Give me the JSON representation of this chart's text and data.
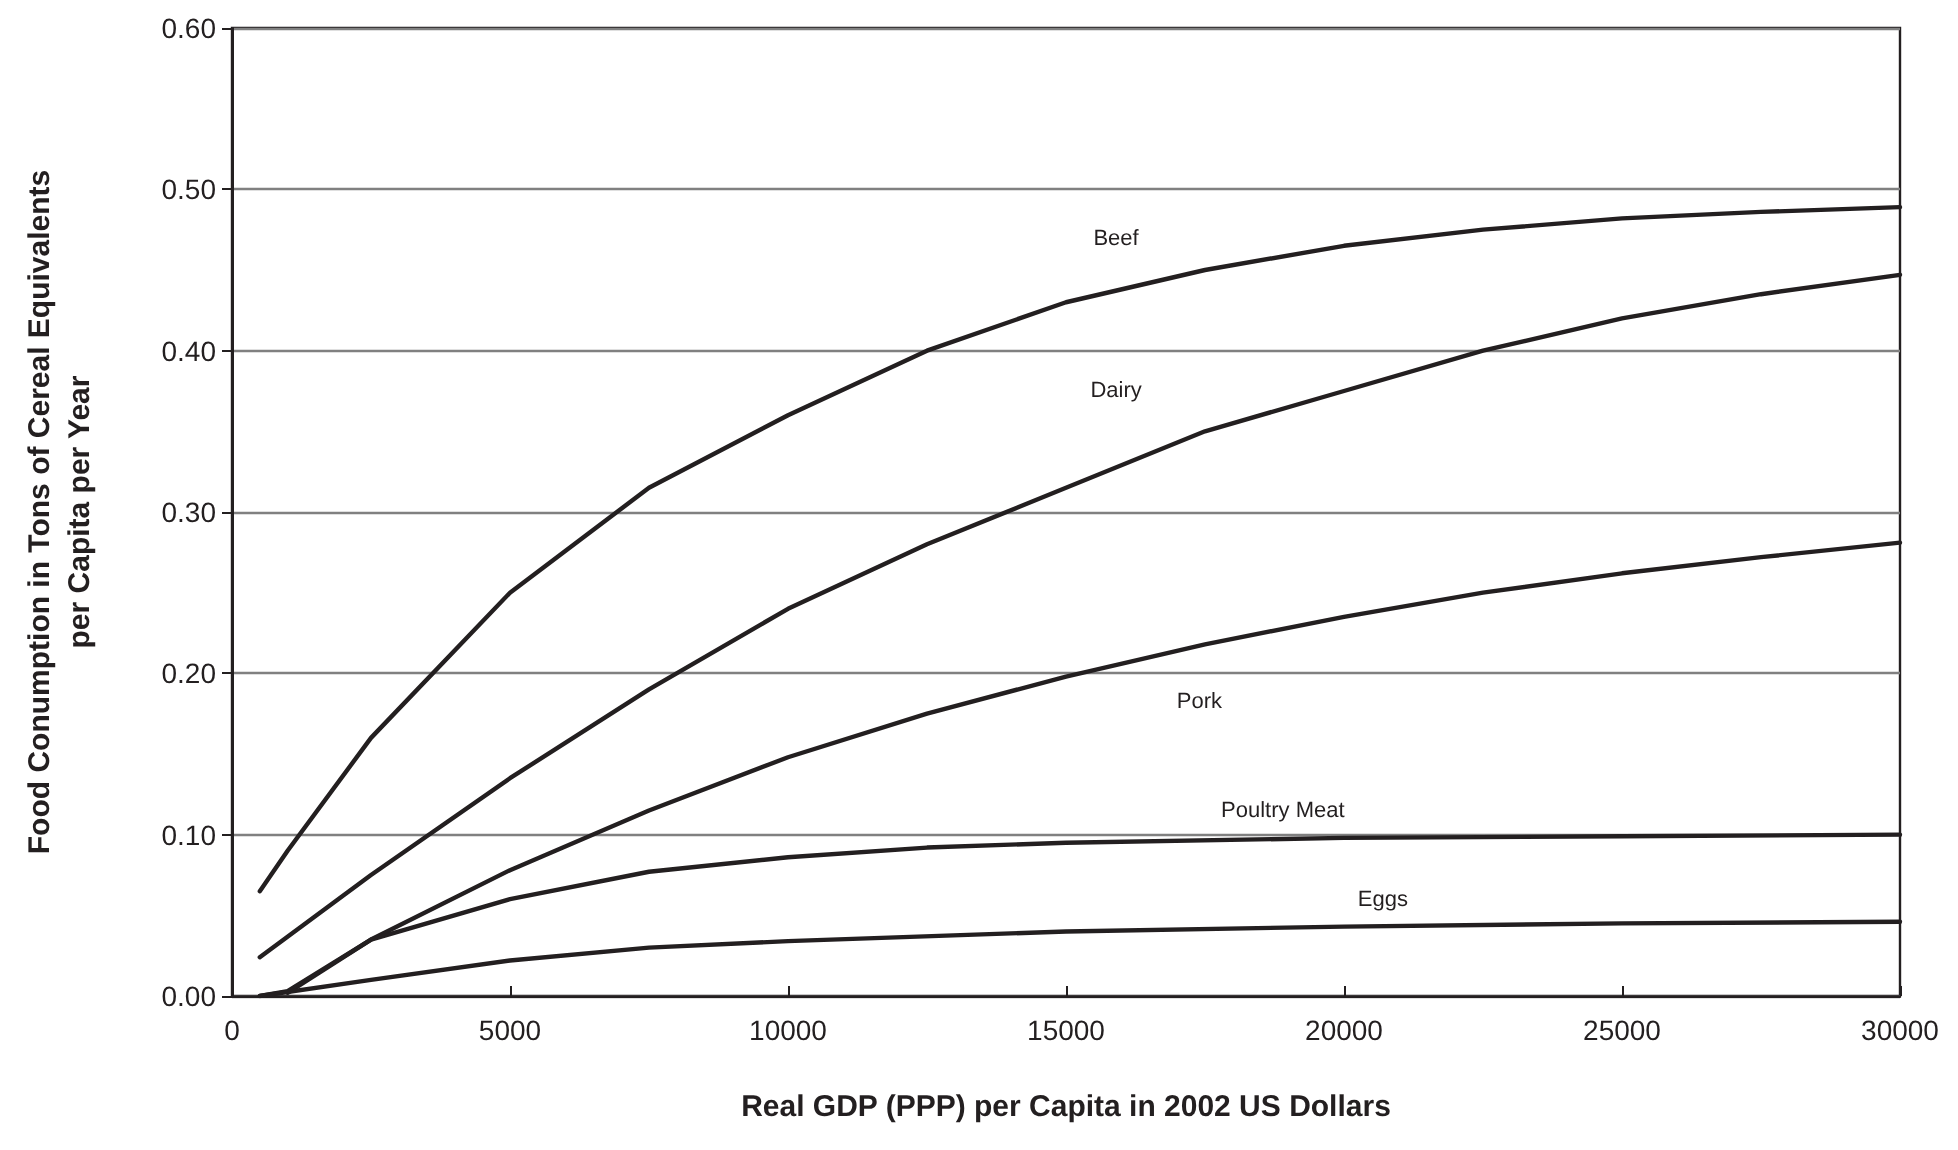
{
  "chart_data": {
    "type": "line",
    "xlabel": "Real GDP (PPP) per Capita in 2002 US Dollars",
    "ylabel": "Food Conumption in Tons of Cereal Equivalents\nper Capita per Year",
    "xlim": [
      0,
      30000
    ],
    "xticks": [
      0,
      5000,
      10000,
      15000,
      20000,
      25000,
      30000
    ],
    "ylim": [
      0,
      0.6
    ],
    "yticks": [
      {
        "value": 0,
        "label": "0.00"
      },
      {
        "value": 0.1,
        "label": "0.10"
      },
      {
        "value": 0.2,
        "label": "0.20"
      },
      {
        "value": 0.3,
        "label": "0.30"
      },
      {
        "value": 0.4,
        "label": "0.40"
      },
      {
        "value": 0.5,
        "label": "0.50"
      },
      {
        "value": 0.6,
        "label": "0.60"
      }
    ],
    "grid": "y",
    "legend": false,
    "marker": "none",
    "line_style": "solid",
    "series": [
      {
        "name": "Beef",
        "color": "#231f20",
        "x": [
          500,
          1000,
          2500,
          5000,
          7500,
          10000,
          12500,
          15000,
          17500,
          20000,
          22500,
          25000,
          27500,
          30000
        ],
        "values": [
          0.065,
          0.09,
          0.16,
          0.25,
          0.315,
          0.36,
          0.4,
          0.43,
          0.45,
          0.465,
          0.475,
          0.482,
          0.486,
          0.489
        ]
      },
      {
        "name": "Dairy",
        "color": "#231f20",
        "x": [
          500,
          2500,
          5000,
          7500,
          10000,
          12500,
          15000,
          17500,
          20000,
          22500,
          25000,
          27500,
          30000
        ],
        "values": [
          0.024,
          0.075,
          0.135,
          0.19,
          0.24,
          0.28,
          0.315,
          0.35,
          0.375,
          0.4,
          0.42,
          0.435,
          0.447
        ]
      },
      {
        "name": "Pork",
        "color": "#231f20",
        "x": [
          1000,
          2500,
          5000,
          7500,
          10000,
          12500,
          15000,
          17500,
          20000,
          22500,
          25000,
          27500,
          30000
        ],
        "values": [
          0.002,
          0.035,
          0.078,
          0.115,
          0.148,
          0.175,
          0.198,
          0.218,
          0.235,
          0.25,
          0.262,
          0.272,
          0.281
        ]
      },
      {
        "name": "Poultry Meat",
        "color": "#231f20",
        "x": [
          500,
          1000,
          2500,
          5000,
          7500,
          10000,
          12500,
          15000,
          20000,
          25000,
          30000
        ],
        "values": [
          0,
          0.003,
          0.035,
          0.06,
          0.077,
          0.086,
          0.092,
          0.095,
          0.098,
          0.099,
          0.1
        ]
      },
      {
        "name": "Eggs",
        "color": "#231f20",
        "x": [
          500,
          2500,
          5000,
          7500,
          10000,
          15000,
          20000,
          25000,
          30000
        ],
        "values": [
          0,
          0.01,
          0.022,
          0.03,
          0.034,
          0.04,
          0.043,
          0.045,
          0.046
        ]
      }
    ]
  }
}
